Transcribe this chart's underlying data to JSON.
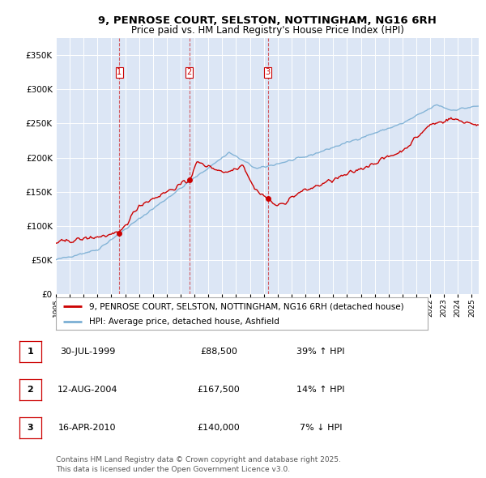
{
  "title_line1": "9, PENROSE COURT, SELSTON, NOTTINGHAM, NG16 6RH",
  "title_line2": "Price paid vs. HM Land Registry's House Price Index (HPI)",
  "background_color": "#ffffff",
  "plot_bg_color": "#dce6f5",
  "grid_color": "#ffffff",
  "sale_color": "#cc0000",
  "hpi_color": "#7bafd4",
  "vline_color": "#cc0000",
  "legend_sale": "9, PENROSE COURT, SELSTON, NOTTINGHAM, NG16 6RH (detached house)",
  "legend_hpi": "HPI: Average price, detached house, Ashfield",
  "transactions": [
    {
      "label": "1",
      "date": 1999.58,
      "price": 88500
    },
    {
      "label": "2",
      "date": 2004.62,
      "price": 167500
    },
    {
      "label": "3",
      "date": 2010.29,
      "price": 140000
    }
  ],
  "table_rows": [
    [
      "1",
      "30-JUL-1999",
      "£88,500",
      "39% ↑ HPI"
    ],
    [
      "2",
      "12-AUG-2004",
      "£167,500",
      "14% ↑ HPI"
    ],
    [
      "3",
      "16-APR-2010",
      "£140,000",
      "7% ↓ HPI"
    ]
  ],
  "footer": "Contains HM Land Registry data © Crown copyright and database right 2025.\nThis data is licensed under the Open Government Licence v3.0.",
  "ylim": [
    0,
    375000
  ],
  "yticks": [
    0,
    50000,
    100000,
    150000,
    200000,
    250000,
    300000,
    350000
  ],
  "xlim_start": 1995.0,
  "xlim_end": 2025.5
}
